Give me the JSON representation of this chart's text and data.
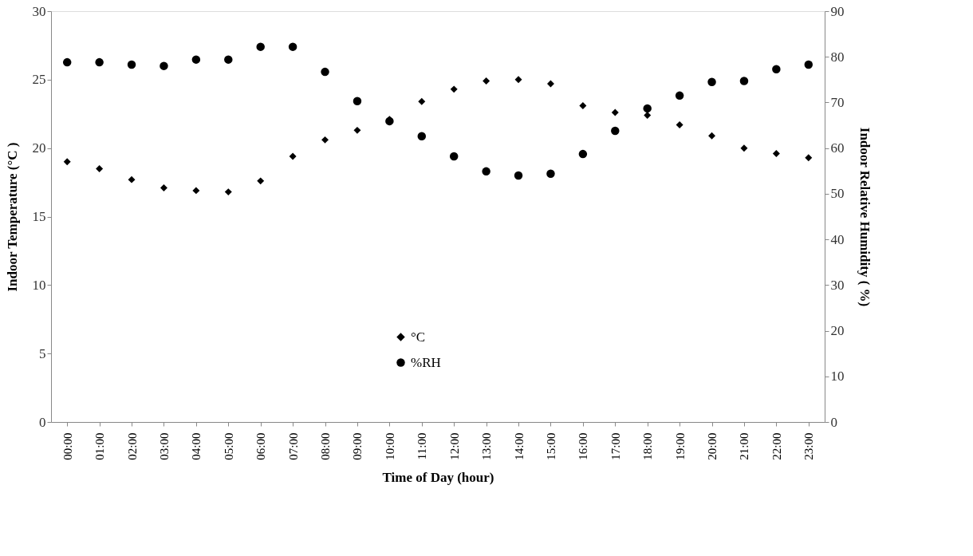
{
  "chart_data": {
    "type": "scatter",
    "categories": [
      "00:00",
      "01:00",
      "02:00",
      "03:00",
      "04:00",
      "05:00",
      "06:00",
      "07:00",
      "08:00",
      "09:00",
      "10:00",
      "11:00",
      "12:00",
      "13:00",
      "14:00",
      "15:00",
      "16:00",
      "17:00",
      "18:00",
      "19:00",
      "20:00",
      "21:00",
      "22:00",
      "23:00"
    ],
    "series": [
      {
        "name": "°C",
        "color": "#000000",
        "marker": "diamond",
        "values": [
          19.0,
          18.5,
          17.7,
          17.1,
          16.9,
          16.8,
          17.6,
          19.4,
          20.6,
          21.3,
          22.1,
          23.4,
          24.3,
          24.9,
          25.0,
          24.7,
          23.1,
          22.6,
          22.4,
          21.7,
          20.9,
          20.0,
          19.6,
          19.3
        ]
      },
      {
        "name": "%RH",
        "color": "#000000",
        "marker": "circle",
        "axis": "y2",
        "values": [
          78.8,
          78.8,
          78.3,
          78.0,
          79.4,
          79.4,
          82.2,
          82.2,
          76.7,
          70.3,
          65.9,
          62.6,
          58.2,
          54.9,
          54.0,
          54.4,
          58.7,
          63.8,
          68.7,
          71.5,
          74.5,
          74.7,
          77.3,
          78.3
        ]
      }
    ],
    "xlabel": "Time of Day (hour)",
    "ylabel": "Indoor Temperature (°C )",
    "y2label": "Indoor Relative Humidity ( %)",
    "ylim": [
      0,
      30
    ],
    "yticks": [
      0,
      5,
      10,
      15,
      20,
      25,
      30
    ],
    "y2lim": [
      0,
      90
    ],
    "y2ticks": [
      0,
      10,
      20,
      30,
      40,
      50,
      60,
      70,
      80,
      90
    ],
    "grid": false,
    "legend": "bottom"
  }
}
